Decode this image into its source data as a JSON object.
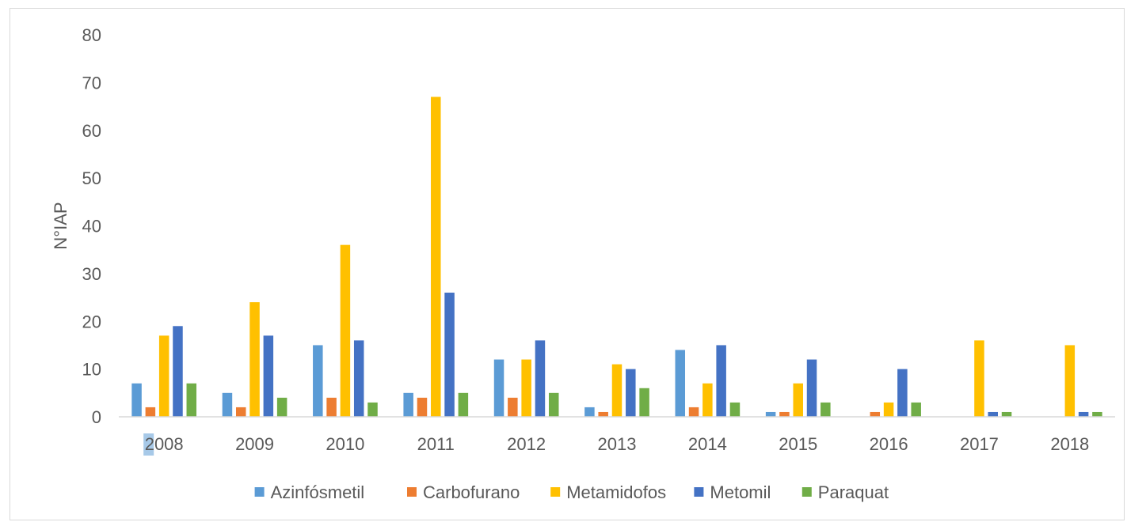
{
  "chart_data": {
    "type": "bar",
    "title": "",
    "xlabel": "",
    "ylabel": "N°IAP",
    "ylim": [
      0,
      80
    ],
    "yticks": [
      0,
      10,
      20,
      30,
      40,
      50,
      60,
      70,
      80
    ],
    "grid": false,
    "legend_position": "bottom",
    "categories": [
      "2008",
      "2009",
      "2010",
      "2011",
      "2012",
      "2013",
      "2014",
      "2015",
      "2016",
      "2017",
      "2018"
    ],
    "series": [
      {
        "name": "Azinfósmetil",
        "color": "#5b9bd5",
        "values": [
          7,
          5,
          15,
          5,
          12,
          2,
          14,
          1,
          0,
          0,
          0
        ]
      },
      {
        "name": "Carbofurano",
        "color": "#ed7d31",
        "values": [
          2,
          2,
          4,
          4,
          4,
          1,
          2,
          1,
          1,
          0,
          0
        ]
      },
      {
        "name": "Metamidofos",
        "color": "#ffc000",
        "values": [
          17,
          24,
          36,
          67,
          12,
          11,
          7,
          7,
          3,
          16,
          15
        ]
      },
      {
        "name": "Metomil",
        "color": "#4472c4",
        "values": [
          19,
          17,
          16,
          26,
          16,
          10,
          15,
          12,
          10,
          1,
          1
        ]
      },
      {
        "name": "Paraquat",
        "color": "#70ad47",
        "values": [
          7,
          4,
          3,
          5,
          5,
          6,
          3,
          3,
          3,
          1,
          1
        ]
      }
    ]
  }
}
